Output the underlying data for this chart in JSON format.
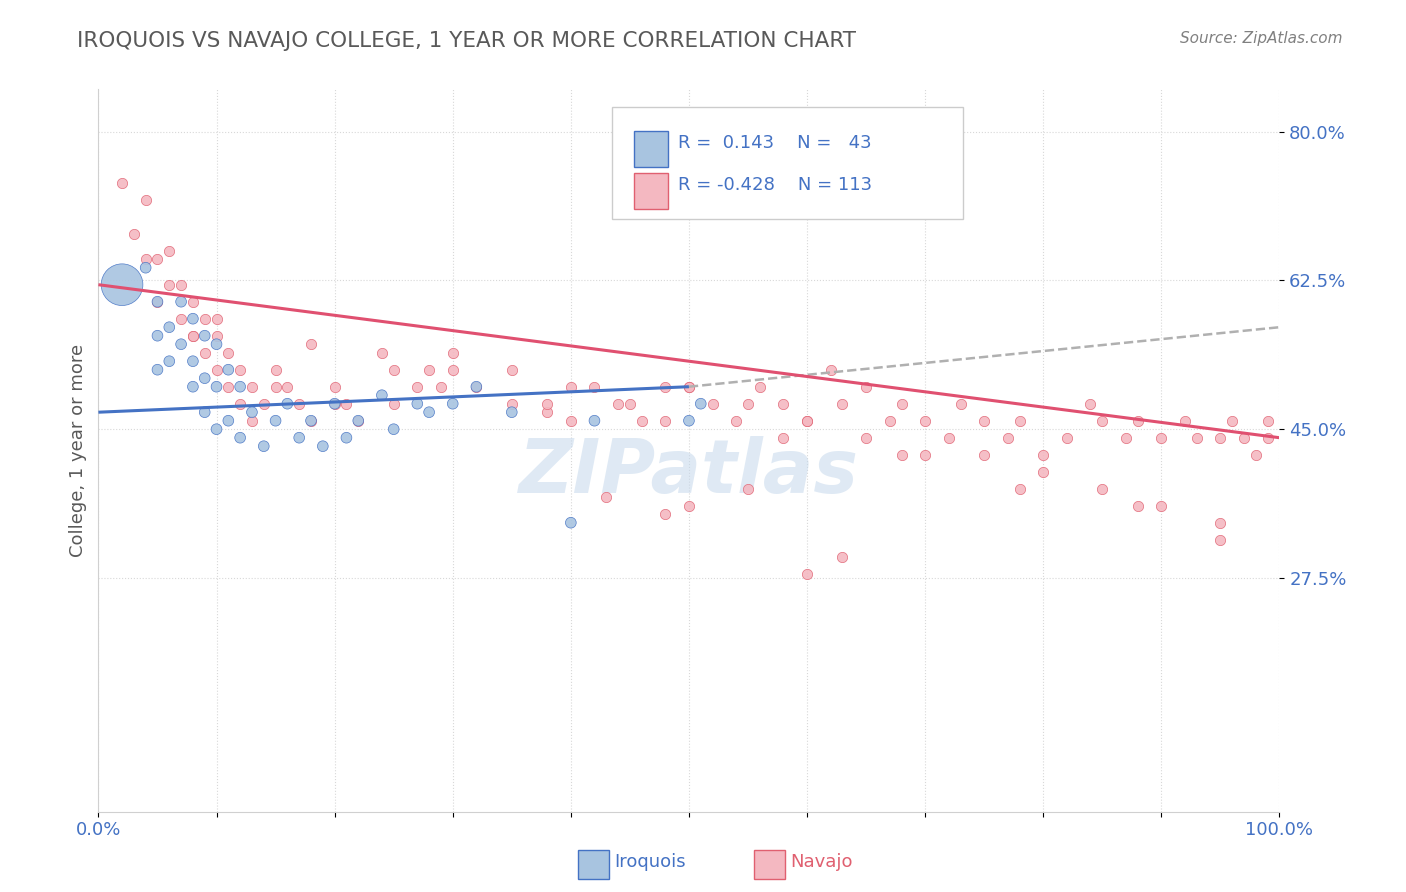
{
  "title": "IROQUOIS VS NAVAJO COLLEGE, 1 YEAR OR MORE CORRELATION CHART",
  "source_text": "Source: ZipAtlas.com",
  "ylabel": "College, 1 year or more",
  "xlim": [
    0.0,
    1.0
  ],
  "ylim": [
    0.0,
    0.85
  ],
  "y_ticks": [
    0.275,
    0.45,
    0.625,
    0.8
  ],
  "y_tick_labels": [
    "27.5%",
    "45.0%",
    "62.5%",
    "80.0%"
  ],
  "x_tick_labels": [
    "0.0%",
    "",
    "",
    "",
    "",
    "",
    "",
    "",
    "",
    "",
    "100.0%"
  ],
  "iroquois_color": "#a8c4e0",
  "navajo_color": "#f4b8c1",
  "iroquois_edge_color": "#4472c4",
  "navajo_edge_color": "#e06070",
  "iroquois_line_color": "#4472c4",
  "navajo_line_color": "#e05070",
  "dashed_line_color": "#b0b0b0",
  "title_color": "#595959",
  "source_color": "#808080",
  "legend_text_color": "#4472c4",
  "grid_color": "#d8d8d8",
  "watermark_color": "#c5d8ec",
  "iroquois_x": [
    0.02,
    0.04,
    0.05,
    0.05,
    0.05,
    0.06,
    0.06,
    0.07,
    0.07,
    0.08,
    0.08,
    0.08,
    0.09,
    0.09,
    0.09,
    0.1,
    0.1,
    0.1,
    0.11,
    0.11,
    0.12,
    0.12,
    0.13,
    0.14,
    0.15,
    0.16,
    0.17,
    0.18,
    0.19,
    0.2,
    0.21,
    0.22,
    0.24,
    0.25,
    0.27,
    0.28,
    0.3,
    0.32,
    0.35,
    0.4,
    0.42,
    0.5,
    0.51
  ],
  "iroquois_y": [
    0.62,
    0.64,
    0.6,
    0.56,
    0.52,
    0.57,
    0.53,
    0.6,
    0.55,
    0.58,
    0.53,
    0.5,
    0.56,
    0.51,
    0.47,
    0.55,
    0.5,
    0.45,
    0.52,
    0.46,
    0.5,
    0.44,
    0.47,
    0.43,
    0.46,
    0.48,
    0.44,
    0.46,
    0.43,
    0.48,
    0.44,
    0.46,
    0.49,
    0.45,
    0.48,
    0.47,
    0.48,
    0.5,
    0.47,
    0.34,
    0.46,
    0.46,
    0.48
  ],
  "iroquois_sizes": [
    900,
    60,
    60,
    60,
    60,
    60,
    60,
    60,
    60,
    60,
    60,
    60,
    60,
    60,
    60,
    60,
    60,
    60,
    60,
    60,
    60,
    60,
    60,
    60,
    60,
    60,
    60,
    60,
    60,
    60,
    60,
    60,
    60,
    60,
    60,
    60,
    60,
    60,
    60,
    60,
    60,
    60,
    60
  ],
  "navajo_x": [
    0.02,
    0.03,
    0.04,
    0.04,
    0.05,
    0.05,
    0.06,
    0.06,
    0.07,
    0.07,
    0.08,
    0.08,
    0.09,
    0.09,
    0.1,
    0.1,
    0.11,
    0.11,
    0.12,
    0.12,
    0.13,
    0.13,
    0.14,
    0.15,
    0.16,
    0.17,
    0.18,
    0.2,
    0.21,
    0.22,
    0.24,
    0.25,
    0.27,
    0.29,
    0.3,
    0.32,
    0.35,
    0.38,
    0.4,
    0.42,
    0.44,
    0.46,
    0.48,
    0.5,
    0.52,
    0.54,
    0.56,
    0.58,
    0.6,
    0.62,
    0.63,
    0.65,
    0.67,
    0.68,
    0.7,
    0.72,
    0.73,
    0.75,
    0.77,
    0.78,
    0.8,
    0.82,
    0.84,
    0.85,
    0.87,
    0.88,
    0.9,
    0.92,
    0.93,
    0.95,
    0.96,
    0.97,
    0.98,
    0.99,
    0.99,
    0.08,
    0.15,
    0.2,
    0.25,
    0.3,
    0.35,
    0.4,
    0.45,
    0.5,
    0.55,
    0.6,
    0.65,
    0.7,
    0.75,
    0.8,
    0.85,
    0.9,
    0.95,
    0.1,
    0.18,
    0.28,
    0.38,
    0.48,
    0.58,
    0.68,
    0.78,
    0.88,
    0.95,
    0.6,
    0.63,
    0.5,
    0.55,
    0.43,
    0.48
  ],
  "navajo_y": [
    0.74,
    0.68,
    0.72,
    0.65,
    0.65,
    0.6,
    0.66,
    0.62,
    0.62,
    0.58,
    0.6,
    0.56,
    0.58,
    0.54,
    0.56,
    0.52,
    0.54,
    0.5,
    0.52,
    0.48,
    0.5,
    0.46,
    0.48,
    0.52,
    0.5,
    0.48,
    0.46,
    0.5,
    0.48,
    0.46,
    0.54,
    0.52,
    0.5,
    0.5,
    0.52,
    0.5,
    0.48,
    0.47,
    0.46,
    0.5,
    0.48,
    0.46,
    0.5,
    0.5,
    0.48,
    0.46,
    0.5,
    0.48,
    0.46,
    0.52,
    0.48,
    0.5,
    0.46,
    0.48,
    0.46,
    0.44,
    0.48,
    0.46,
    0.44,
    0.46,
    0.42,
    0.44,
    0.48,
    0.46,
    0.44,
    0.46,
    0.44,
    0.46,
    0.44,
    0.44,
    0.46,
    0.44,
    0.42,
    0.46,
    0.44,
    0.56,
    0.5,
    0.48,
    0.48,
    0.54,
    0.52,
    0.5,
    0.48,
    0.5,
    0.48,
    0.46,
    0.44,
    0.42,
    0.42,
    0.4,
    0.38,
    0.36,
    0.34,
    0.58,
    0.55,
    0.52,
    0.48,
    0.46,
    0.44,
    0.42,
    0.38,
    0.36,
    0.32,
    0.28,
    0.3,
    0.36,
    0.38,
    0.37,
    0.35
  ],
  "iroq_trend": [
    0.47,
    0.5
  ],
  "nav_trend": [
    0.62,
    0.44
  ],
  "dash_trend_x": [
    0.5,
    1.0
  ],
  "dash_trend_y": [
    0.5,
    0.57
  ]
}
